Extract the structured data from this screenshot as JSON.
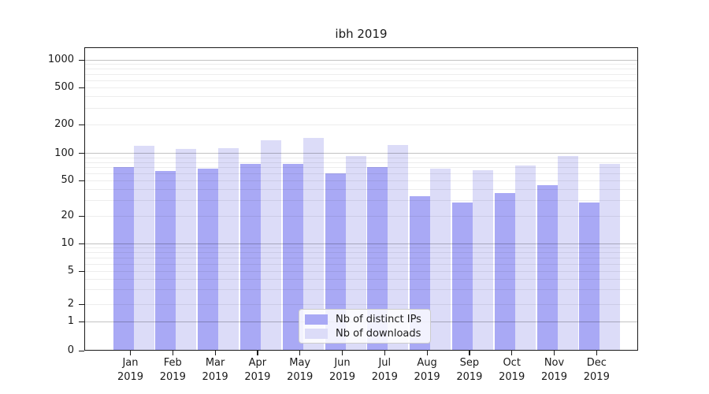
{
  "chart_data": {
    "type": "bar",
    "title": "ibh 2019",
    "categories": [
      "Jan",
      "Feb",
      "Mar",
      "Apr",
      "May",
      "Jun",
      "Jul",
      "Aug",
      "Sep",
      "Oct",
      "Nov",
      "Dec"
    ],
    "year_label": "2019",
    "series": [
      {
        "name": "Nb of distinct IPs",
        "color": "#a9a9f5",
        "values": [
          70,
          63,
          67,
          76,
          76,
          60,
          70,
          33,
          28,
          36,
          44,
          28
        ]
      },
      {
        "name": "Nb of downloads",
        "color": "#dcdcf8",
        "values": [
          120,
          110,
          113,
          138,
          146,
          94,
          121,
          68,
          65,
          73,
          93,
          76
        ]
      }
    ],
    "xlabel": "",
    "ylabel": "",
    "yticks": [
      0,
      1,
      2,
      5,
      10,
      20,
      50,
      100,
      200,
      500,
      1000
    ],
    "ylim": [
      0,
      1370
    ],
    "yscale": "symlog (log above 1, linear 0-1)",
    "grid": "horizontal major and minor gridlines, drawn over bars",
    "legend_position": "lower center"
  },
  "colors": {
    "background": "#ffffff",
    "bar_distinct_ips": "#a9a9f5",
    "bar_downloads": "#dcdcf8",
    "major_grid": "rgba(0,0,0,0.24)",
    "minor_grid": "rgba(0,0,0,0.07)",
    "spine": "#1a1a1a",
    "text": "#1a1a1a",
    "legend_border": "#cccccc",
    "legend_background": "rgba(255,255,255,0.85)"
  }
}
